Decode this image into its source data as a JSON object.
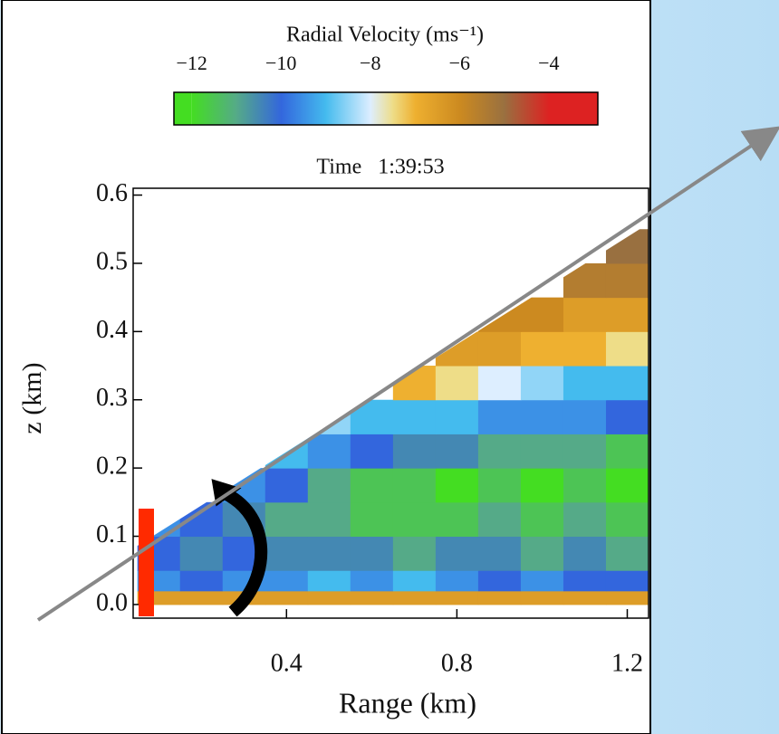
{
  "chart_data": {
    "type": "heatmap",
    "colorbar_label": "Radial Velocity (ms⁻¹)",
    "colorbar_ticks": [
      {
        "value": -12,
        "label": "−12"
      },
      {
        "value": -10,
        "label": "−10"
      },
      {
        "value": -8,
        "label": "−8"
      },
      {
        "value": -6,
        "label": "−6"
      },
      {
        "value": -4,
        "label": "−4"
      }
    ],
    "colorbar_lim": [
      -12.4,
      -2.9
    ],
    "colormap": [
      {
        "value": -12,
        "color": "#44dd22"
      },
      {
        "value": -11,
        "color": "#55aa88"
      },
      {
        "value": -10,
        "color": "#3366dd"
      },
      {
        "value": -9,
        "color": "#44bbee"
      },
      {
        "value": -8,
        "color": "#ddeeff"
      },
      {
        "value": -7.5,
        "color": "#eedd88"
      },
      {
        "value": -7,
        "color": "#eeb030"
      },
      {
        "value": -6,
        "color": "#cc8a20"
      },
      {
        "value": -5,
        "color": "#997040"
      },
      {
        "value": -4,
        "color": "#dd2222"
      }
    ],
    "title": "Time   1:39:53",
    "x_label": "Range (km)",
    "y_label": "z (km)",
    "xlim": [
      0.04,
      1.25
    ],
    "ylim": [
      -0.02,
      0.61
    ],
    "xticks": [
      0.4,
      0.8,
      1.2
    ],
    "yticks": [
      {
        "value": 0,
        "label": "0.0"
      },
      0.1,
      0.2,
      0.3,
      0.4,
      0.5,
      0.6
    ],
    "x_edges": [
      0.05,
      0.15,
      0.25,
      0.35,
      0.45,
      0.55,
      0.65,
      0.75,
      0.85,
      0.95,
      1.05,
      1.15,
      1.25
    ],
    "y_edges": [
      0,
      0.02,
      0.05,
      0.1,
      0.15,
      0.2,
      0.25,
      0.3,
      0.35,
      0.4,
      0.45,
      0.5,
      0.55,
      0.6
    ],
    "values": [
      [
        -6.5,
        -6.5,
        -6.5,
        -6.5,
        -6.5,
        -6.5,
        -6.5,
        -6.5,
        -6.5,
        -6.5,
        -6.5,
        -6.5
      ],
      [
        -9.5,
        -10,
        -9.5,
        -9.5,
        -9,
        -9.5,
        -9,
        -9.5,
        -10,
        -9.5,
        -10,
        -10
      ],
      [
        -10,
        -10.5,
        -10,
        -10.5,
        -10.5,
        -10.5,
        -11,
        -10.5,
        -10.5,
        -11,
        -10.5,
        -11
      ],
      [
        -9.5,
        -10,
        -10.5,
        -11,
        -11,
        -11.5,
        -11.5,
        -11.5,
        -11,
        -11.5,
        -11,
        -11.5
      ],
      [
        null,
        null,
        -9.5,
        -10,
        -11,
        -11.5,
        -11.5,
        -12,
        -11.5,
        -12,
        -11.5,
        -12
      ],
      [
        null,
        null,
        null,
        -9,
        -9.5,
        -10,
        -10.5,
        -10.5,
        -11,
        -11,
        -11,
        -11.5
      ],
      [
        null,
        null,
        null,
        null,
        -8.5,
        -9,
        -9,
        -9,
        -9.5,
        -9.5,
        -9.5,
        -10
      ],
      [
        null,
        null,
        null,
        null,
        null,
        null,
        -7,
        -7.5,
        -8,
        -8.5,
        -9,
        -9
      ],
      [
        null,
        null,
        null,
        null,
        null,
        null,
        null,
        -6.5,
        -6.5,
        -7,
        -7,
        -7.5
      ],
      [
        null,
        null,
        null,
        null,
        null,
        null,
        null,
        null,
        -6,
        -6,
        -6.5,
        -6.5
      ],
      [
        null,
        null,
        null,
        null,
        null,
        null,
        null,
        null,
        null,
        null,
        -5.5,
        -5.5
      ],
      [
        null,
        null,
        null,
        null,
        null,
        null,
        null,
        null,
        null,
        null,
        null,
        -5
      ],
      [
        null,
        null,
        null,
        null,
        null,
        null,
        null,
        null,
        null,
        null,
        null,
        null
      ]
    ]
  }
}
